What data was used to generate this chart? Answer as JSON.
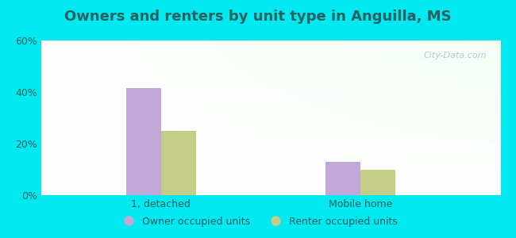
{
  "title": "Owners and renters by unit type in Anguilla, MS",
  "categories": [
    "1, detached",
    "Mobile home"
  ],
  "owner_values": [
    41.5,
    13.0
  ],
  "renter_values": [
    25.0,
    10.0
  ],
  "owner_color": "#c2a8d8",
  "renter_color": "#c5cc88",
  "ylim": [
    0,
    60
  ],
  "yticks": [
    0,
    20,
    40,
    60
  ],
  "ytick_labels": [
    "0%",
    "20%",
    "40%",
    "60%"
  ],
  "bar_width": 0.35,
  "group_positions": [
    1.0,
    3.0
  ],
  "background_outer": "#00e8f0",
  "text_color": "#2a6060",
  "legend_labels": [
    "Owner occupied units",
    "Renter occupied units"
  ],
  "watermark": "City-Data.com",
  "figsize": [
    6.5,
    3.0
  ],
  "dpi": 100
}
